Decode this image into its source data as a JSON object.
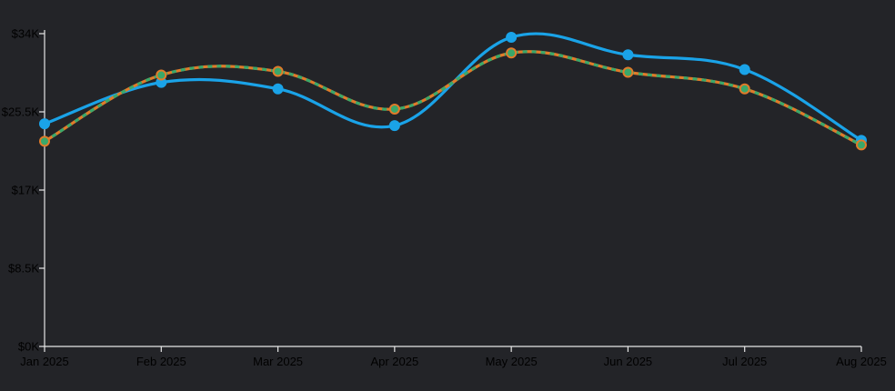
{
  "chart_data": {
    "type": "line",
    "title": "",
    "xlabel": "",
    "ylabel": "",
    "categories": [
      "Jan 2025",
      "Feb 2025",
      "Mar 2025",
      "Apr 2025",
      "May 2025",
      "Jun 2025",
      "Jul 2025",
      "Aug 2025"
    ],
    "y_ticks": [
      "$0K",
      "$8.5K",
      "$17K",
      "$25.5K",
      "$34K"
    ],
    "ylim": [
      0,
      34000
    ],
    "grid": false,
    "legend": "none",
    "series": [
      {
        "values": [
          24200,
          28700,
          28000,
          24000,
          33600,
          31700,
          30100,
          22400
        ],
        "color": "#1aa3e8",
        "style": "solid",
        "marker_fill": "#1aa3e8"
      },
      {
        "values": [
          22300,
          29500,
          29900,
          25800,
          31900,
          29800,
          28000,
          21900
        ],
        "color": "#e07b2a",
        "dash_color": "#3aa86a",
        "style": "dashed",
        "marker_fill": "#3aa86a"
      }
    ]
  }
}
